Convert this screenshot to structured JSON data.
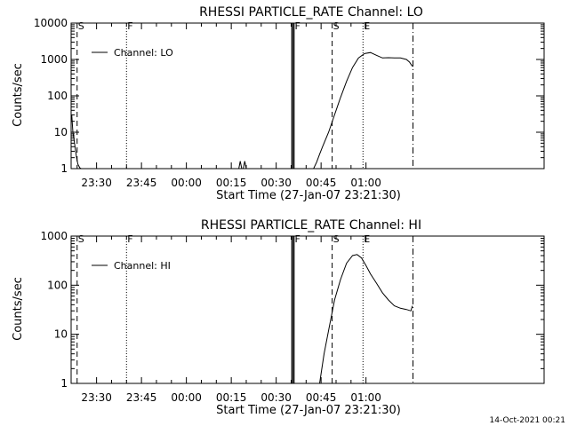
{
  "footer": {
    "timestamp": "14-Oct-2021 00:21"
  },
  "chart_data": [
    {
      "type": "line",
      "title": "RHESSI PARTICLE_RATE Channel: LO",
      "xlabel": "Start Time (27-Jan-07 23:21:30)",
      "ylabel": "Counts/sec",
      "x_unit": "minutes after 23:21:30",
      "xlim": [
        0,
        158
      ],
      "ylim": [
        1,
        10000
      ],
      "yscale": "log",
      "grid": false,
      "legend": {
        "position": "top-left",
        "entries": [
          "Channel: LO"
        ]
      },
      "x_ticks": [
        {
          "v": 8.5,
          "label": "23:30"
        },
        {
          "v": 23.5,
          "label": "23:45"
        },
        {
          "v": 38.5,
          "label": "00:00"
        },
        {
          "v": 53.5,
          "label": "00:15"
        },
        {
          "v": 68.5,
          "label": "00:30"
        },
        {
          "v": 83.5,
          "label": "00:45"
        },
        {
          "v": 98.5,
          "label": "01:00"
        }
      ],
      "y_ticks": [
        {
          "v": 1,
          "label": "1"
        },
        {
          "v": 10,
          "label": "10"
        },
        {
          "v": 100,
          "label": "100"
        },
        {
          "v": 1000,
          "label": "1000"
        },
        {
          "v": 10000,
          "label": "10000"
        }
      ],
      "markers": [
        {
          "x": 2.0,
          "style": "dashed",
          "label": "S"
        },
        {
          "x": 18.5,
          "style": "dotted",
          "label": "F"
        },
        {
          "x": 73.8,
          "style": "solid",
          "label": ""
        },
        {
          "x": 74.4,
          "style": "solid",
          "label": "F"
        },
        {
          "x": 87.2,
          "style": "dashed",
          "label": "S"
        },
        {
          "x": 97.5,
          "style": "dotted",
          "label": "E"
        },
        {
          "x": 114.2,
          "style": "dashdot",
          "label": ""
        }
      ],
      "series": [
        {
          "name": "Channel: LO",
          "segments": [
            {
              "x": [
                0.2,
                0.6,
                1.0,
                1.4,
                1.8,
                2.3,
                2.9,
                3.4
              ],
              "y": [
                30,
                10,
                6,
                3.5,
                2,
                1.3,
                1.05,
                1.0
              ]
            },
            {
              "x": [
                3.4,
                56.0,
                56.5,
                57.0,
                57.5,
                58.0,
                58.5,
                59.0,
                81.0
              ],
              "y": [
                1,
                1,
                1.6,
                1,
                1,
                1.6,
                1,
                1,
                1
              ]
            },
            {
              "x": [
                81.0,
                82.0,
                83.0,
                84.0,
                86.0,
                88.0,
                90.0,
                92.0,
                94.0,
                96.0,
                98.0,
                100.0,
                102.0,
                104.0,
                106.0,
                108.0,
                110.0,
                112.0,
                113.0,
                114.0
              ],
              "y": [
                1,
                1.5,
                2.5,
                4,
                10,
                30,
                90,
                250,
                600,
                1100,
                1450,
                1550,
                1300,
                1100,
                1120,
                1100,
                1100,
                1000,
                850,
                650
              ]
            }
          ]
        }
      ]
    },
    {
      "type": "line",
      "title": "RHESSI PARTICLE_RATE Channel: HI",
      "xlabel": "Start Time (27-Jan-07 23:21:30)",
      "ylabel": "Counts/sec",
      "x_unit": "minutes after 23:21:30",
      "xlim": [
        0,
        158
      ],
      "ylim": [
        1,
        1000
      ],
      "yscale": "log",
      "grid": false,
      "legend": {
        "position": "top-left",
        "entries": [
          "Channel: HI"
        ]
      },
      "x_ticks": [
        {
          "v": 8.5,
          "label": "23:30"
        },
        {
          "v": 23.5,
          "label": "23:45"
        },
        {
          "v": 38.5,
          "label": "00:00"
        },
        {
          "v": 53.5,
          "label": "00:15"
        },
        {
          "v": 68.5,
          "label": "00:30"
        },
        {
          "v": 83.5,
          "label": "00:45"
        },
        {
          "v": 98.5,
          "label": "01:00"
        }
      ],
      "y_ticks": [
        {
          "v": 1,
          "label": "1"
        },
        {
          "v": 10,
          "label": "10"
        },
        {
          "v": 100,
          "label": "100"
        },
        {
          "v": 1000,
          "label": "1000"
        }
      ],
      "markers": [
        {
          "x": 2.0,
          "style": "dashed",
          "label": "S"
        },
        {
          "x": 18.5,
          "style": "dotted",
          "label": "F"
        },
        {
          "x": 73.8,
          "style": "solid",
          "label": ""
        },
        {
          "x": 74.4,
          "style": "solid",
          "label": "F"
        },
        {
          "x": 87.2,
          "style": "dashed",
          "label": "S"
        },
        {
          "x": 97.5,
          "style": "dotted",
          "label": "E"
        },
        {
          "x": 114.2,
          "style": "dashdot",
          "label": ""
        }
      ],
      "series": [
        {
          "name": "Channel: HI",
          "segments": [
            {
              "x": [
                83.0,
                84.5,
                86.0,
                88.0,
                90.0,
                92.0,
                94.0,
                95.5,
                97.0,
                98.5,
                100.0,
                102.0,
                104.0,
                106.0,
                108.0,
                110.0,
                112.0,
                113.5,
                114.0
              ],
              "y": [
                1,
                4,
                12,
                50,
                130,
                280,
                400,
                420,
                360,
                250,
                170,
                110,
                70,
                50,
                38,
                34,
                32,
                30,
                38
              ]
            }
          ]
        }
      ]
    }
  ]
}
